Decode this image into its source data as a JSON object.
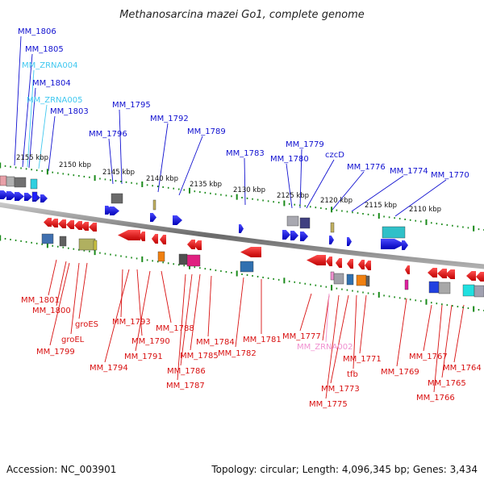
{
  "title": "Methanosarcina mazei Go1, complete genome",
  "footer": {
    "accession": "Accession: NC_003901",
    "summary": "Topology: circular; Length: 4,096,345 bp; Genes: 3,434"
  },
  "colors": {
    "forward_gene": "#1010d0",
    "reverse_gene": "#d81010",
    "rna_forward": "#40c8f0",
    "rna_reverse": "#f090d0",
    "tick": "#1a8a1a",
    "backbone": "#8a8a8a"
  },
  "kbp_labels": [
    "2155 kbp",
    "2150 kbp",
    "2145 kbp",
    "2140 kbp",
    "2135 kbp",
    "2130 kbp",
    "2125 kbp",
    "2120 kbp",
    "2115 kbp",
    "2110 kbp"
  ],
  "top_labels": [
    {
      "text": "MM_1806",
      "type": "gene"
    },
    {
      "text": "MM_1805",
      "type": "gene"
    },
    {
      "text": "MM_ZRNA004",
      "type": "rna"
    },
    {
      "text": "MM_1804",
      "type": "gene"
    },
    {
      "text": "MM_ZRNA005",
      "type": "rna"
    },
    {
      "text": "MM_1803",
      "type": "gene"
    },
    {
      "text": "MM_1795",
      "type": "gene"
    },
    {
      "text": "MM_1796",
      "type": "gene"
    },
    {
      "text": "MM_1792",
      "type": "gene"
    },
    {
      "text": "MM_1789",
      "type": "gene"
    },
    {
      "text": "MM_1783",
      "type": "gene"
    },
    {
      "text": "MM_1779",
      "type": "gene"
    },
    {
      "text": "MM_1780",
      "type": "gene"
    },
    {
      "text": "czcD",
      "type": "gene"
    },
    {
      "text": "MM_1776",
      "type": "gene"
    },
    {
      "text": "MM_1774",
      "type": "gene"
    },
    {
      "text": "MM_1770",
      "type": "gene"
    }
  ],
  "bottom_labels": [
    {
      "text": "MM_1801",
      "type": "gene"
    },
    {
      "text": "MM_1800",
      "type": "gene"
    },
    {
      "text": "groES",
      "type": "gene"
    },
    {
      "text": "groEL",
      "type": "gene"
    },
    {
      "text": "MM_1799",
      "type": "gene"
    },
    {
      "text": "MM_1793",
      "type": "gene"
    },
    {
      "text": "MM_1790",
      "type": "gene"
    },
    {
      "text": "MM_1791",
      "type": "gene"
    },
    {
      "text": "MM_1794",
      "type": "gene"
    },
    {
      "text": "MM_1788",
      "type": "gene"
    },
    {
      "text": "MM_1786",
      "type": "gene"
    },
    {
      "text": "MM_1787",
      "type": "gene"
    },
    {
      "text": "MM_1785",
      "type": "gene"
    },
    {
      "text": "MM_1784",
      "type": "gene"
    },
    {
      "text": "MM_1782",
      "type": "gene"
    },
    {
      "text": "MM_1781",
      "type": "gene"
    },
    {
      "text": "MM_1777",
      "type": "gene"
    },
    {
      "text": "MM_ZRNA002",
      "type": "rna"
    },
    {
      "text": "MM_1771",
      "type": "gene"
    },
    {
      "text": "tfb",
      "type": "gene"
    },
    {
      "text": "MM_1773",
      "type": "gene"
    },
    {
      "text": "MM_1775",
      "type": "gene"
    },
    {
      "text": "MM_1769",
      "type": "gene"
    },
    {
      "text": "MM_1767",
      "type": "gene"
    },
    {
      "text": "MM_1764",
      "type": "gene"
    },
    {
      "text": "MM_1765",
      "type": "gene"
    },
    {
      "text": "MM_1766",
      "type": "gene"
    }
  ]
}
